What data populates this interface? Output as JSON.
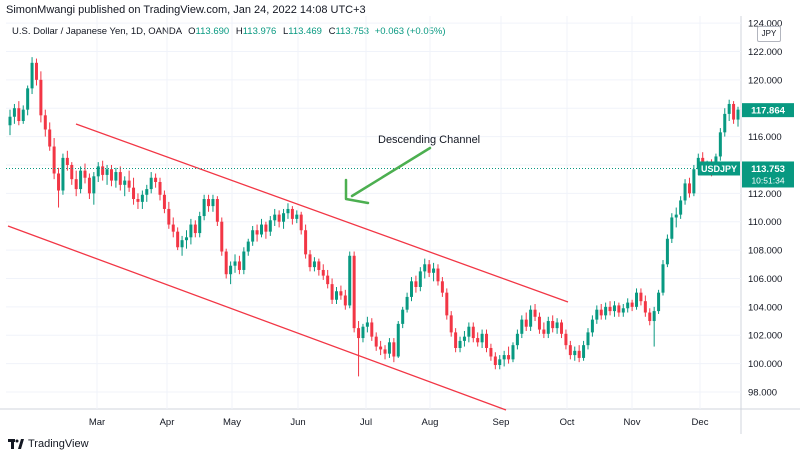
{
  "attribution": "SimonMwangi published on TradingView.com, Jan 24, 2022 14:08 UTC+3",
  "symbol_line": {
    "name": "U.S. Dollar / Japanese Yen, 1D, OANDA",
    "o_label": "O",
    "o_val": "113.690",
    "h_label": "H",
    "h_val": "113.976",
    "l_label": "L",
    "l_val": "113.469",
    "c_label": "C",
    "c_val": "113.753",
    "change": "+0.063 (+0.05%)"
  },
  "currency": "JPY",
  "footer_brand": "TradingView",
  "colors": {
    "up": "#089981",
    "down": "#f23645",
    "channel": "#f23645",
    "arrow": "#4caf50",
    "price_tag": "#089981",
    "grid": "#f0f3fa"
  },
  "chart_data": {
    "type": "candlestick",
    "x_ticks": [
      "Mar",
      "Apr",
      "May",
      "Jun",
      "Jul",
      "Aug",
      "Sep",
      "Oct",
      "Nov",
      "Dec"
    ],
    "y_ticks": [
      "98.000",
      "100.000",
      "102.000",
      "104.000",
      "106.000",
      "108.000",
      "110.000",
      "112.000",
      "114.000",
      "116.000",
      "118.000",
      "120.000",
      "122.000",
      "124.000"
    ],
    "ylim": [
      96.8,
      124.5
    ],
    "annotation": "Descending Channel",
    "price_labels": [
      {
        "value": 117.864,
        "text": "117.864"
      },
      {
        "value": 113.753,
        "text": "113.753",
        "ticker": "USDJPY",
        "countdown": "10:51:34"
      }
    ],
    "candles": [
      {
        "o": 116.8,
        "h": 117.9,
        "l": 116.1,
        "c": 117.4
      },
      {
        "o": 117.4,
        "h": 118.3,
        "l": 116.9,
        "c": 118.0
      },
      {
        "o": 118.0,
        "h": 118.5,
        "l": 116.8,
        "c": 117.1
      },
      {
        "o": 117.1,
        "h": 118.2,
        "l": 116.9,
        "c": 117.9
      },
      {
        "o": 117.9,
        "h": 119.6,
        "l": 117.5,
        "c": 119.4
      },
      {
        "o": 119.4,
        "h": 121.6,
        "l": 119.0,
        "c": 121.2
      },
      {
        "o": 121.2,
        "h": 121.5,
        "l": 119.6,
        "c": 120.0
      },
      {
        "o": 120.0,
        "h": 120.6,
        "l": 117.0,
        "c": 117.5
      },
      {
        "o": 117.5,
        "h": 117.9,
        "l": 116.0,
        "c": 116.5
      },
      {
        "o": 116.5,
        "h": 117.0,
        "l": 115.0,
        "c": 115.3
      },
      {
        "o": 115.3,
        "h": 115.9,
        "l": 113.0,
        "c": 113.4
      },
      {
        "o": 113.4,
        "h": 113.8,
        "l": 111.0,
        "c": 112.2
      },
      {
        "o": 112.2,
        "h": 114.8,
        "l": 111.9,
        "c": 114.5
      },
      {
        "o": 114.5,
        "h": 115.0,
        "l": 113.6,
        "c": 114.0
      },
      {
        "o": 114.0,
        "h": 114.2,
        "l": 112.6,
        "c": 113.0
      },
      {
        "o": 113.0,
        "h": 113.6,
        "l": 111.8,
        "c": 112.3
      },
      {
        "o": 112.3,
        "h": 113.9,
        "l": 112.0,
        "c": 113.6
      },
      {
        "o": 113.6,
        "h": 114.1,
        "l": 112.7,
        "c": 113.1
      },
      {
        "o": 113.1,
        "h": 113.4,
        "l": 111.6,
        "c": 112.0
      },
      {
        "o": 112.0,
        "h": 113.5,
        "l": 111.2,
        "c": 113.2
      },
      {
        "o": 113.2,
        "h": 114.2,
        "l": 112.8,
        "c": 113.9
      },
      {
        "o": 113.9,
        "h": 114.3,
        "l": 112.9,
        "c": 113.3
      },
      {
        "o": 113.3,
        "h": 114.0,
        "l": 112.6,
        "c": 113.7
      },
      {
        "o": 113.7,
        "h": 114.0,
        "l": 112.5,
        "c": 112.9
      },
      {
        "o": 112.9,
        "h": 113.8,
        "l": 112.4,
        "c": 113.5
      },
      {
        "o": 113.5,
        "h": 113.9,
        "l": 112.2,
        "c": 112.6
      },
      {
        "o": 112.6,
        "h": 113.2,
        "l": 111.8,
        "c": 112.9
      },
      {
        "o": 112.9,
        "h": 113.6,
        "l": 112.1,
        "c": 112.4
      },
      {
        "o": 112.4,
        "h": 113.1,
        "l": 111.2,
        "c": 111.6
      },
      {
        "o": 111.6,
        "h": 112.0,
        "l": 110.9,
        "c": 111.4
      },
      {
        "o": 111.4,
        "h": 112.2,
        "l": 110.9,
        "c": 111.9
      },
      {
        "o": 111.9,
        "h": 112.6,
        "l": 111.4,
        "c": 112.3
      },
      {
        "o": 112.3,
        "h": 113.5,
        "l": 112.0,
        "c": 113.1
      },
      {
        "o": 113.1,
        "h": 113.4,
        "l": 112.4,
        "c": 112.8
      },
      {
        "o": 112.8,
        "h": 113.1,
        "l": 111.5,
        "c": 111.9
      },
      {
        "o": 111.9,
        "h": 112.2,
        "l": 110.6,
        "c": 110.9
      },
      {
        "o": 110.9,
        "h": 111.4,
        "l": 109.5,
        "c": 109.8
      },
      {
        "o": 109.8,
        "h": 110.3,
        "l": 108.9,
        "c": 109.3
      },
      {
        "o": 109.3,
        "h": 109.6,
        "l": 108.0,
        "c": 108.2
      },
      {
        "o": 108.2,
        "h": 109.0,
        "l": 107.6,
        "c": 108.7
      },
      {
        "o": 108.7,
        "h": 109.4,
        "l": 108.1,
        "c": 108.9
      },
      {
        "o": 108.9,
        "h": 110.2,
        "l": 108.4,
        "c": 109.8
      },
      {
        "o": 109.8,
        "h": 110.1,
        "l": 108.9,
        "c": 109.2
      },
      {
        "o": 109.2,
        "h": 110.7,
        "l": 108.9,
        "c": 110.4
      },
      {
        "o": 110.4,
        "h": 111.9,
        "l": 110.1,
        "c": 111.6
      },
      {
        "o": 111.6,
        "h": 111.9,
        "l": 110.7,
        "c": 111.1
      },
      {
        "o": 111.1,
        "h": 111.9,
        "l": 110.7,
        "c": 111.6
      },
      {
        "o": 111.6,
        "h": 111.8,
        "l": 109.7,
        "c": 110.0
      },
      {
        "o": 110.0,
        "h": 110.3,
        "l": 107.6,
        "c": 107.9
      },
      {
        "o": 107.9,
        "h": 108.1,
        "l": 106.0,
        "c": 106.3
      },
      {
        "o": 106.3,
        "h": 107.2,
        "l": 105.6,
        "c": 106.9
      },
      {
        "o": 106.9,
        "h": 107.7,
        "l": 106.4,
        "c": 107.2
      },
      {
        "o": 107.2,
        "h": 107.6,
        "l": 106.3,
        "c": 106.6
      },
      {
        "o": 106.6,
        "h": 108.2,
        "l": 106.3,
        "c": 107.9
      },
      {
        "o": 107.9,
        "h": 108.8,
        "l": 107.6,
        "c": 108.6
      },
      {
        "o": 108.6,
        "h": 109.7,
        "l": 108.3,
        "c": 109.4
      },
      {
        "o": 109.4,
        "h": 109.8,
        "l": 108.6,
        "c": 109.1
      },
      {
        "o": 109.1,
        "h": 110.2,
        "l": 108.9,
        "c": 109.8
      },
      {
        "o": 109.8,
        "h": 110.0,
        "l": 108.8,
        "c": 109.3
      },
      {
        "o": 109.3,
        "h": 110.4,
        "l": 109.0,
        "c": 110.1
      },
      {
        "o": 110.1,
        "h": 110.9,
        "l": 109.7,
        "c": 110.5
      },
      {
        "o": 110.5,
        "h": 110.8,
        "l": 109.6,
        "c": 110.0
      },
      {
        "o": 110.0,
        "h": 110.9,
        "l": 109.5,
        "c": 110.6
      },
      {
        "o": 110.6,
        "h": 111.3,
        "l": 110.2,
        "c": 110.9
      },
      {
        "o": 110.9,
        "h": 111.1,
        "l": 109.8,
        "c": 110.2
      },
      {
        "o": 110.2,
        "h": 110.8,
        "l": 109.9,
        "c": 110.5
      },
      {
        "o": 110.5,
        "h": 110.7,
        "l": 109.1,
        "c": 109.4
      },
      {
        "o": 109.4,
        "h": 109.8,
        "l": 107.4,
        "c": 107.7
      },
      {
        "o": 107.7,
        "h": 108.0,
        "l": 106.5,
        "c": 106.8
      },
      {
        "o": 106.8,
        "h": 107.5,
        "l": 106.5,
        "c": 107.2
      },
      {
        "o": 107.2,
        "h": 107.4,
        "l": 106.2,
        "c": 106.6
      },
      {
        "o": 106.6,
        "h": 107.0,
        "l": 105.9,
        "c": 106.2
      },
      {
        "o": 106.2,
        "h": 106.6,
        "l": 105.3,
        "c": 105.6
      },
      {
        "o": 105.6,
        "h": 106.0,
        "l": 104.2,
        "c": 104.5
      },
      {
        "o": 104.5,
        "h": 105.4,
        "l": 104.2,
        "c": 105.1
      },
      {
        "o": 105.1,
        "h": 105.5,
        "l": 104.5,
        "c": 104.8
      },
      {
        "o": 104.8,
        "h": 105.2,
        "l": 103.8,
        "c": 104.1
      },
      {
        "o": 104.1,
        "h": 107.9,
        "l": 103.9,
        "c": 107.6
      },
      {
        "o": 107.6,
        "h": 107.9,
        "l": 102.2,
        "c": 102.5
      },
      {
        "o": 102.5,
        "h": 103.0,
        "l": 99.1,
        "c": 101.8
      },
      {
        "o": 101.8,
        "h": 102.8,
        "l": 101.5,
        "c": 102.6
      },
      {
        "o": 102.6,
        "h": 103.3,
        "l": 102.2,
        "c": 102.9
      },
      {
        "o": 102.9,
        "h": 103.2,
        "l": 101.6,
        "c": 101.9
      },
      {
        "o": 101.9,
        "h": 102.2,
        "l": 100.9,
        "c": 101.2
      },
      {
        "o": 101.2,
        "h": 101.6,
        "l": 100.6,
        "c": 101.0
      },
      {
        "o": 101.0,
        "h": 101.3,
        "l": 100.3,
        "c": 100.7
      },
      {
        "o": 100.7,
        "h": 101.8,
        "l": 100.4,
        "c": 101.5
      },
      {
        "o": 101.5,
        "h": 101.8,
        "l": 100.1,
        "c": 100.5
      },
      {
        "o": 100.5,
        "h": 103.0,
        "l": 100.4,
        "c": 102.8
      },
      {
        "o": 102.8,
        "h": 104.0,
        "l": 102.5,
        "c": 103.8
      },
      {
        "o": 103.8,
        "h": 105.0,
        "l": 103.6,
        "c": 104.7
      },
      {
        "o": 104.7,
        "h": 106.1,
        "l": 104.4,
        "c": 105.8
      },
      {
        "o": 105.8,
        "h": 106.2,
        "l": 105.0,
        "c": 105.4
      },
      {
        "o": 105.4,
        "h": 106.8,
        "l": 105.1,
        "c": 106.5
      },
      {
        "o": 106.5,
        "h": 107.4,
        "l": 106.0,
        "c": 107.0
      },
      {
        "o": 107.0,
        "h": 107.3,
        "l": 106.1,
        "c": 106.4
      },
      {
        "o": 106.4,
        "h": 107.1,
        "l": 105.8,
        "c": 106.7
      },
      {
        "o": 106.7,
        "h": 107.0,
        "l": 105.5,
        "c": 105.8
      },
      {
        "o": 105.8,
        "h": 106.1,
        "l": 104.7,
        "c": 105.0
      },
      {
        "o": 105.0,
        "h": 105.3,
        "l": 103.1,
        "c": 103.4
      },
      {
        "o": 103.4,
        "h": 103.7,
        "l": 101.9,
        "c": 102.2
      },
      {
        "o": 102.2,
        "h": 102.5,
        "l": 100.8,
        "c": 101.1
      },
      {
        "o": 101.1,
        "h": 101.9,
        "l": 100.8,
        "c": 101.6
      },
      {
        "o": 101.6,
        "h": 102.3,
        "l": 101.2,
        "c": 101.9
      },
      {
        "o": 101.9,
        "h": 102.9,
        "l": 101.5,
        "c": 102.6
      },
      {
        "o": 102.6,
        "h": 102.9,
        "l": 101.5,
        "c": 101.8
      },
      {
        "o": 101.8,
        "h": 102.2,
        "l": 101.2,
        "c": 101.5
      },
      {
        "o": 101.5,
        "h": 102.4,
        "l": 101.1,
        "c": 102.1
      },
      {
        "o": 102.1,
        "h": 102.4,
        "l": 100.8,
        "c": 101.1
      },
      {
        "o": 101.1,
        "h": 101.4,
        "l": 100.2,
        "c": 100.5
      },
      {
        "o": 100.5,
        "h": 100.8,
        "l": 99.6,
        "c": 99.9
      },
      {
        "o": 99.9,
        "h": 100.6,
        "l": 99.6,
        "c": 100.3
      },
      {
        "o": 100.3,
        "h": 100.9,
        "l": 99.8,
        "c": 100.6
      },
      {
        "o": 100.6,
        "h": 101.2,
        "l": 100.0,
        "c": 100.3
      },
      {
        "o": 100.3,
        "h": 101.5,
        "l": 100.1,
        "c": 101.3
      },
      {
        "o": 101.3,
        "h": 102.4,
        "l": 101.0,
        "c": 102.1
      },
      {
        "o": 102.1,
        "h": 103.4,
        "l": 101.8,
        "c": 103.1
      },
      {
        "o": 103.1,
        "h": 103.6,
        "l": 102.3,
        "c": 102.6
      },
      {
        "o": 102.6,
        "h": 104.1,
        "l": 102.3,
        "c": 103.8
      },
      {
        "o": 103.8,
        "h": 104.2,
        "l": 103.0,
        "c": 103.3
      },
      {
        "o": 103.3,
        "h": 103.6,
        "l": 102.1,
        "c": 102.4
      },
      {
        "o": 102.4,
        "h": 102.9,
        "l": 101.8,
        "c": 102.1
      },
      {
        "o": 102.1,
        "h": 103.3,
        "l": 101.8,
        "c": 103.0
      },
      {
        "o": 103.0,
        "h": 103.4,
        "l": 102.2,
        "c": 102.5
      },
      {
        "o": 102.5,
        "h": 103.2,
        "l": 102.1,
        "c": 102.9
      },
      {
        "o": 102.9,
        "h": 103.1,
        "l": 101.8,
        "c": 102.1
      },
      {
        "o": 102.1,
        "h": 102.4,
        "l": 101.0,
        "c": 101.3
      },
      {
        "o": 101.3,
        "h": 101.6,
        "l": 100.3,
        "c": 100.6
      },
      {
        "o": 100.6,
        "h": 101.2,
        "l": 100.2,
        "c": 100.9
      },
      {
        "o": 100.9,
        "h": 101.3,
        "l": 100.1,
        "c": 100.4
      },
      {
        "o": 100.4,
        "h": 101.6,
        "l": 100.2,
        "c": 101.3
      },
      {
        "o": 101.3,
        "h": 102.5,
        "l": 101.0,
        "c": 102.2
      },
      {
        "o": 102.2,
        "h": 103.4,
        "l": 101.9,
        "c": 103.1
      },
      {
        "o": 103.1,
        "h": 104.1,
        "l": 102.8,
        "c": 103.8
      },
      {
        "o": 103.8,
        "h": 104.2,
        "l": 103.1,
        "c": 103.4
      },
      {
        "o": 103.4,
        "h": 104.3,
        "l": 103.1,
        "c": 104.0
      },
      {
        "o": 104.0,
        "h": 104.4,
        "l": 103.4,
        "c": 103.7
      },
      {
        "o": 103.7,
        "h": 104.4,
        "l": 103.3,
        "c": 104.1
      },
      {
        "o": 104.1,
        "h": 104.3,
        "l": 103.3,
        "c": 103.6
      },
      {
        "o": 103.6,
        "h": 104.2,
        "l": 103.3,
        "c": 103.9
      },
      {
        "o": 103.9,
        "h": 104.6,
        "l": 103.6,
        "c": 104.3
      },
      {
        "o": 104.3,
        "h": 104.5,
        "l": 103.7,
        "c": 104.0
      },
      {
        "o": 104.0,
        "h": 105.3,
        "l": 103.8,
        "c": 105.0
      },
      {
        "o": 105.0,
        "h": 105.3,
        "l": 104.1,
        "c": 104.4
      },
      {
        "o": 104.4,
        "h": 104.8,
        "l": 103.3,
        "c": 103.6
      },
      {
        "o": 103.6,
        "h": 103.9,
        "l": 102.7,
        "c": 103.0
      },
      {
        "o": 103.0,
        "h": 104.0,
        "l": 101.2,
        "c": 103.7
      },
      {
        "o": 103.7,
        "h": 105.2,
        "l": 103.5,
        "c": 105.0
      },
      {
        "o": 105.0,
        "h": 107.3,
        "l": 104.8,
        "c": 107.0
      },
      {
        "o": 107.0,
        "h": 109.1,
        "l": 106.8,
        "c": 108.8
      },
      {
        "o": 108.8,
        "h": 110.6,
        "l": 108.5,
        "c": 110.3
      },
      {
        "o": 110.3,
        "h": 111.0,
        "l": 109.6,
        "c": 110.5
      },
      {
        "o": 110.5,
        "h": 111.8,
        "l": 110.2,
        "c": 111.5
      },
      {
        "o": 111.5,
        "h": 113.0,
        "l": 111.2,
        "c": 112.7
      },
      {
        "o": 112.7,
        "h": 113.1,
        "l": 111.7,
        "c": 112.0
      },
      {
        "o": 112.0,
        "h": 114.0,
        "l": 111.8,
        "c": 113.7
      },
      {
        "o": 113.7,
        "h": 114.8,
        "l": 113.3,
        "c": 114.5
      },
      {
        "o": 114.5,
        "h": 114.9,
        "l": 113.5,
        "c": 113.8
      },
      {
        "o": 113.8,
        "h": 114.3,
        "l": 113.4,
        "c": 114.0
      },
      {
        "o": 114.0,
        "h": 114.4,
        "l": 113.2,
        "c": 113.5
      },
      {
        "o": 113.5,
        "h": 114.8,
        "l": 113.3,
        "c": 114.6
      },
      {
        "o": 114.6,
        "h": 116.6,
        "l": 114.3,
        "c": 116.3
      },
      {
        "o": 116.3,
        "h": 118.0,
        "l": 116.0,
        "c": 117.6
      },
      {
        "o": 117.6,
        "h": 118.6,
        "l": 117.1,
        "c": 118.3
      },
      {
        "o": 118.3,
        "h": 118.5,
        "l": 116.9,
        "c": 117.2
      },
      {
        "o": 117.2,
        "h": 118.1,
        "l": 116.7,
        "c": 117.9
      }
    ]
  }
}
